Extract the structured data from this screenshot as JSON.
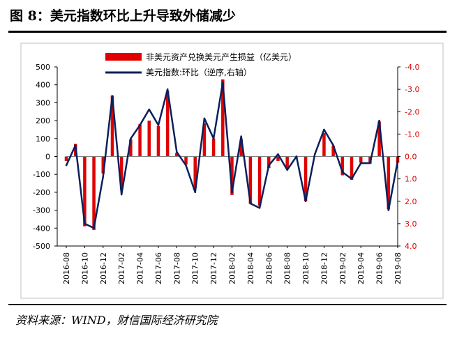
{
  "figure": {
    "title": "图 8：美元指数环比上升导致外储减少",
    "source": "资料来源：WIND，财信国际经济研究院"
  },
  "colors": {
    "bar": "#e00000",
    "line": "#0a1f5c",
    "right_axis": "#e00000"
  },
  "chart_data": {
    "type": "bar+line",
    "legend": {
      "position": "top-center",
      "entries": [
        "非美元资产兑换美元产生损益（亿美元）",
        "美元指数:环比（逆序,右轴）"
      ]
    },
    "x": [
      "2016-08",
      "2016-09",
      "2016-10",
      "2016-11",
      "2016-12",
      "2017-01",
      "2017-02",
      "2017-03",
      "2017-04",
      "2017-05",
      "2017-06",
      "2017-07",
      "2017-08",
      "2017-09",
      "2017-10",
      "2017-11",
      "2017-12",
      "2018-01",
      "2018-02",
      "2018-03",
      "2018-04",
      "2018-05",
      "2018-06",
      "2018-07",
      "2018-08",
      "2018-09",
      "2018-10",
      "2018-11",
      "2018-12",
      "2019-01",
      "2019-02",
      "2019-03",
      "2019-04",
      "2019-05",
      "2019-06",
      "2019-07",
      "2019-08"
    ],
    "x_tick_labels": [
      "2016-08",
      "2016-10",
      "2016-12",
      "2017-02",
      "2017-04",
      "2017-06",
      "2017-08",
      "2017-10",
      "2017-12",
      "2018-02",
      "2018-04",
      "2018-06",
      "2018-08",
      "2018-10",
      "2018-12",
      "2019-02",
      "2019-04",
      "2019-06",
      "2019-08"
    ],
    "series": [
      {
        "name": "非美元资产兑换美元产生损益（亿美元）",
        "type": "bar",
        "axis": "left",
        "values": [
          -25,
          70,
          -390,
          -410,
          -95,
          340,
          -185,
          95,
          180,
          200,
          170,
          365,
          20,
          -45,
          -175,
          185,
          100,
          430,
          -215,
          95,
          -265,
          -275,
          -65,
          -25,
          -70,
          -5,
          -250,
          0,
          130,
          60,
          -105,
          -130,
          -35,
          -40,
          195,
          -295,
          -35
        ]
      },
      {
        "name": "美元指数:环比（逆序,右轴）",
        "type": "line",
        "axis": "right",
        "reversed": true,
        "values": [
          0.4,
          -0.5,
          3.0,
          3.2,
          0.9,
          -2.7,
          1.7,
          -0.8,
          -1.4,
          -2.1,
          -1.4,
          -3.0,
          -0.2,
          0.4,
          1.6,
          -1.7,
          -0.8,
          -3.3,
          1.6,
          -0.9,
          2.1,
          2.3,
          0.4,
          -0.1,
          0.6,
          0.0,
          2.0,
          -0.1,
          -1.2,
          -0.5,
          0.7,
          1.0,
          0.3,
          0.3,
          -1.6,
          2.4,
          0.2
        ]
      }
    ],
    "y_left": {
      "min": -500,
      "max": 500,
      "ticks": [
        500,
        400,
        300,
        200,
        100,
        0,
        -100,
        -200,
        -300,
        -400,
        -500
      ]
    },
    "y_right": {
      "min": -4.0,
      "max": 4.0,
      "reversed": true,
      "ticks": [
        -4.0,
        -3.0,
        -2.0,
        -1.0,
        0.0,
        1.0,
        2.0,
        3.0,
        4.0
      ],
      "tick_labels": [
        "-4.0",
        "-3.0",
        "-2.0",
        "-1.0",
        "0.0",
        "1.0",
        "2.0",
        "3.0",
        "4.0"
      ]
    },
    "grid": false
  }
}
